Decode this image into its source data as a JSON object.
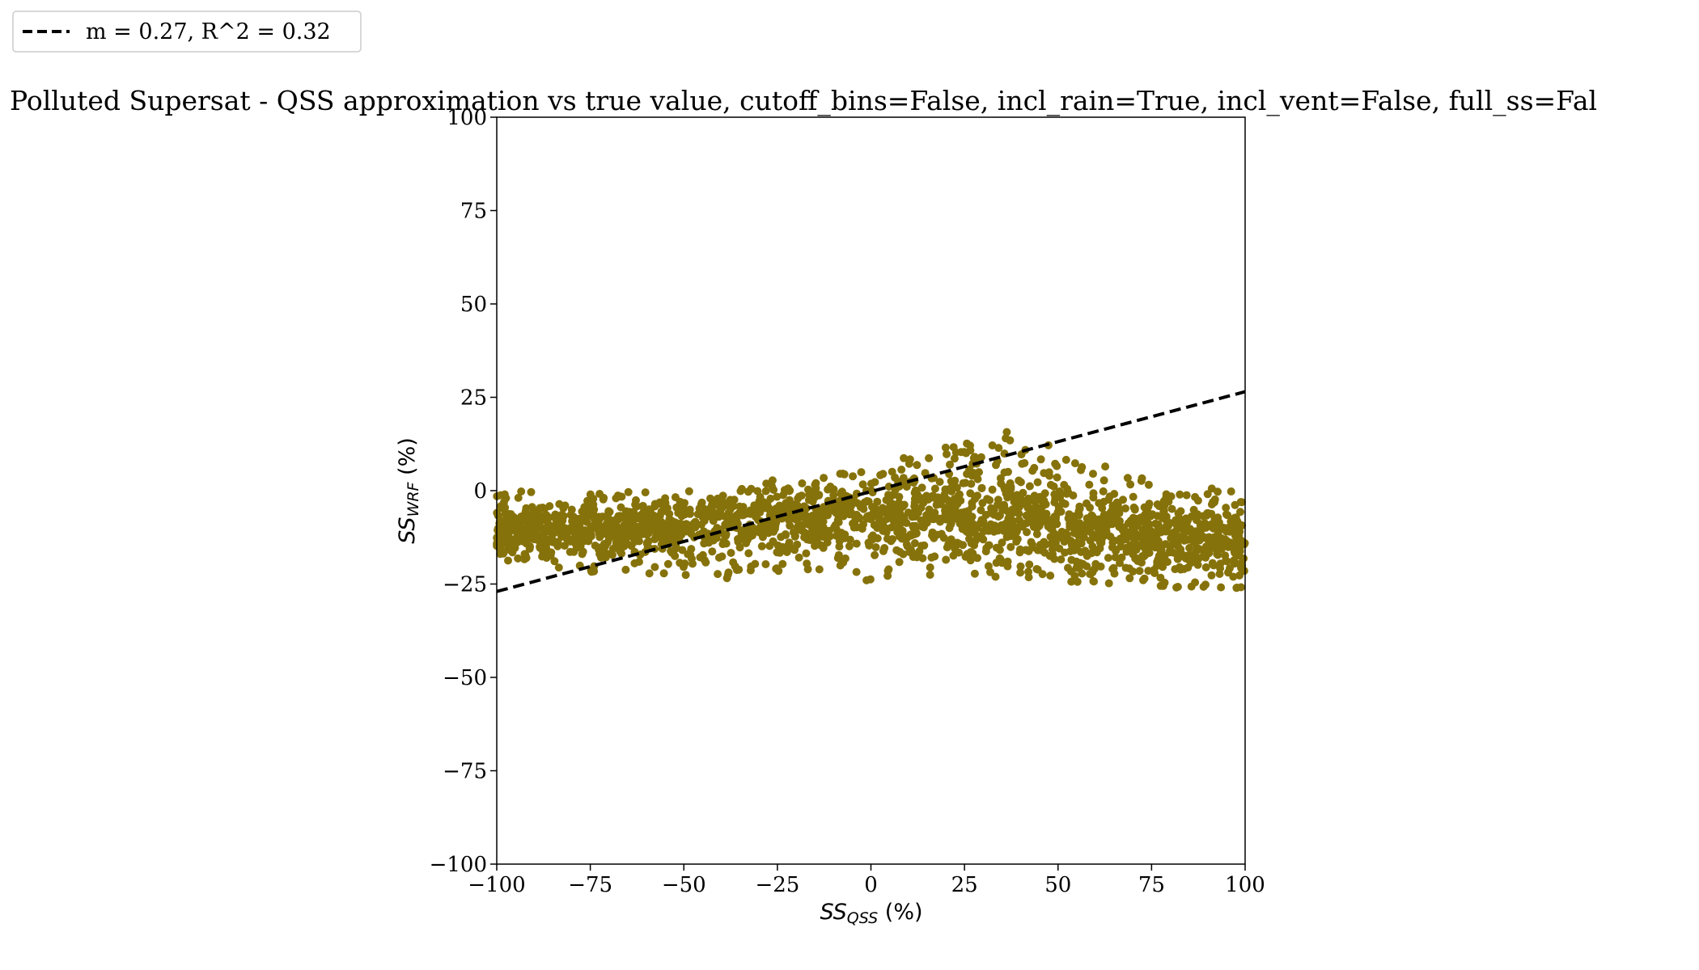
{
  "chart_data": {
    "type": "scatter",
    "title": "Polluted Supersat - QSS approximation vs true value, cutoff_bins=False, incl_rain=True, incl_vent=False, full_ss=Fal",
    "xlabel_main": "SS",
    "xlabel_sub": "QSS",
    "xlabel_unit": " (%)",
    "ylabel_main": "SS",
    "ylabel_sub": "WRF",
    "ylabel_unit": " (%)",
    "xlim": [
      -100,
      100
    ],
    "ylim": [
      -100,
      100
    ],
    "xticks": [
      -100,
      -75,
      -50,
      -25,
      0,
      25,
      50,
      75,
      100
    ],
    "yticks": [
      -100,
      -75,
      -50,
      -25,
      0,
      25,
      50,
      75,
      100
    ],
    "xtick_labels": [
      "−100",
      "−75",
      "−50",
      "−25",
      "0",
      "25",
      "50",
      "75",
      "100"
    ],
    "ytick_labels": [
      "−100",
      "−75",
      "−50",
      "−25",
      "0",
      "25",
      "50",
      "75",
      "100"
    ],
    "grid": false,
    "legend_position": "top-left, outside plot",
    "series": [
      {
        "kind": "scatter",
        "color": "#86720A",
        "envelope_x": [
          -100,
          -75,
          -50,
          -25,
          0,
          10,
          25,
          40,
          50,
          75,
          100
        ],
        "envelope_upper": [
          0,
          0,
          0,
          3,
          6,
          10,
          15,
          16,
          12,
          3,
          0
        ],
        "envelope_lower": [
          -20,
          -22,
          -23,
          -24,
          -24,
          -23,
          -22,
          -24,
          -25,
          -26,
          -27
        ],
        "density_ridge": [
          -11,
          -10,
          -9,
          -8,
          -7,
          -6,
          -6,
          -8,
          -10,
          -12,
          -13
        ]
      },
      {
        "kind": "line",
        "name": "m = 0.27, R^2 = 0.32",
        "style": "dashed",
        "color": "#000000",
        "slope": 0.27,
        "x": [
          -100,
          100
        ],
        "y": [
          -27,
          26.5
        ]
      }
    ]
  }
}
